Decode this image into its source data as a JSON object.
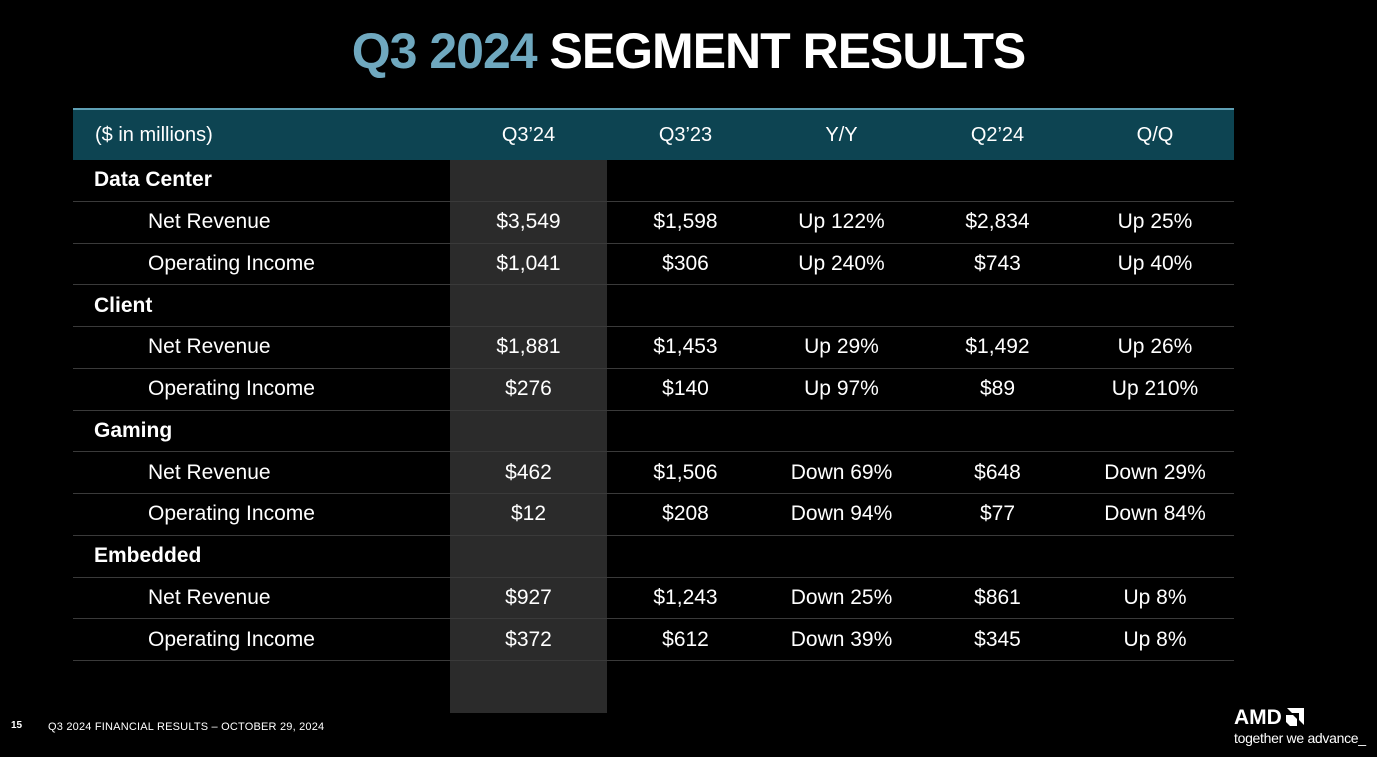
{
  "title": {
    "highlight": "Q3 2024",
    "rest": "SEGMENT RESULTS"
  },
  "table": {
    "headers": [
      "($ in millions)",
      "Q3’24",
      "Q3’23",
      "Y/Y",
      "Q2’24",
      "Q/Q"
    ],
    "rows": [
      {
        "type": "group",
        "cells": [
          "Data Center",
          "",
          "",
          "",
          "",
          ""
        ]
      },
      {
        "type": "metric",
        "cells": [
          "Net Revenue",
          "$3,549",
          "$1,598",
          "Up 122%",
          "$2,834",
          "Up 25%"
        ]
      },
      {
        "type": "metric",
        "cells": [
          "Operating Income",
          "$1,041",
          "$306",
          "Up 240%",
          "$743",
          "Up 40%"
        ]
      },
      {
        "type": "group",
        "cells": [
          "Client",
          "",
          "",
          "",
          "",
          ""
        ]
      },
      {
        "type": "metric",
        "cells": [
          "Net Revenue",
          "$1,881",
          "$1,453",
          "Up 29%",
          "$1,492",
          "Up 26%"
        ]
      },
      {
        "type": "metric",
        "cells": [
          "Operating Income",
          "$276",
          "$140",
          "Up 97%",
          "$89",
          "Up 210%"
        ]
      },
      {
        "type": "group",
        "cells": [
          "Gaming",
          "",
          "",
          "",
          "",
          ""
        ]
      },
      {
        "type": "metric",
        "cells": [
          "Net Revenue",
          "$462",
          "$1,506",
          "Down 69%",
          "$648",
          "Down 29%"
        ]
      },
      {
        "type": "metric",
        "cells": [
          "Operating Income",
          "$12",
          "$208",
          "Down 94%",
          "$77",
          "Down 84%"
        ]
      },
      {
        "type": "group",
        "cells": [
          "Embedded",
          "",
          "",
          "",
          "",
          ""
        ]
      },
      {
        "type": "metric",
        "cells": [
          "Net Revenue",
          "$927",
          "$1,243",
          "Down 25%",
          "$861",
          "Up 8%"
        ]
      },
      {
        "type": "metric",
        "cells": [
          "Operating Income",
          "$372",
          "$612",
          "Down 39%",
          "$345",
          "Up 8%"
        ]
      }
    ]
  },
  "footer": {
    "page_number": "15",
    "text": "Q3 2024 FINANCIAL RESULTS – OCTOBER 29, 2024",
    "logo_word": "AMD",
    "tagline": "together we advance_"
  },
  "colors": {
    "title_highlight": "#6fa8bf",
    "header_bg": "#0d4452",
    "header_border": "#5e9fb4",
    "highlight_column": "#2b2b2b"
  },
  "icons": {
    "logo": "amd-arrow-logo-icon"
  }
}
